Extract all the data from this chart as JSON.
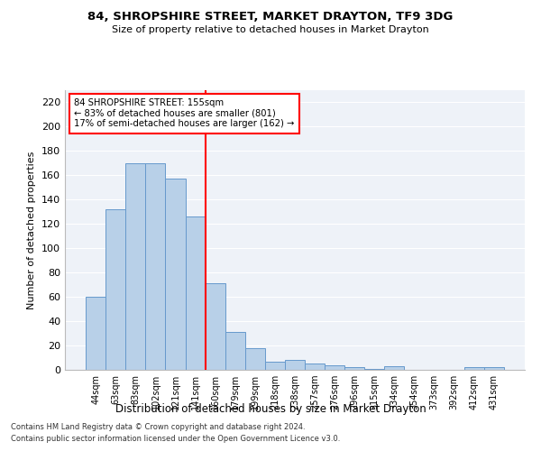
{
  "title1": "84, SHROPSHIRE STREET, MARKET DRAYTON, TF9 3DG",
  "title2": "Size of property relative to detached houses in Market Drayton",
  "xlabel": "Distribution of detached houses by size in Market Drayton",
  "ylabel": "Number of detached properties",
  "categories": [
    "44sqm",
    "63sqm",
    "83sqm",
    "102sqm",
    "121sqm",
    "141sqm",
    "160sqm",
    "179sqm",
    "199sqm",
    "218sqm",
    "238sqm",
    "257sqm",
    "276sqm",
    "296sqm",
    "315sqm",
    "334sqm",
    "354sqm",
    "373sqm",
    "392sqm",
    "412sqm",
    "431sqm"
  ],
  "values": [
    60,
    132,
    170,
    170,
    157,
    126,
    71,
    31,
    18,
    7,
    8,
    5,
    4,
    2,
    1,
    3,
    0,
    0,
    0,
    2,
    2
  ],
  "bar_color": "#b8d0e8",
  "bar_edge_color": "#6699cc",
  "vline_x": 5.5,
  "annotation_line1": "84 SHROPSHIRE STREET: 155sqm",
  "annotation_line2": "← 83% of detached houses are smaller (801)",
  "annotation_line3": "17% of semi-detached houses are larger (162) →",
  "annotation_box_color": "white",
  "annotation_box_edge": "red",
  "footer1": "Contains HM Land Registry data © Crown copyright and database right 2024.",
  "footer2": "Contains public sector information licensed under the Open Government Licence v3.0.",
  "bg_color": "#eef2f8",
  "ylim": [
    0,
    230
  ],
  "yticks": [
    0,
    20,
    40,
    60,
    80,
    100,
    120,
    140,
    160,
    180,
    200,
    220
  ]
}
